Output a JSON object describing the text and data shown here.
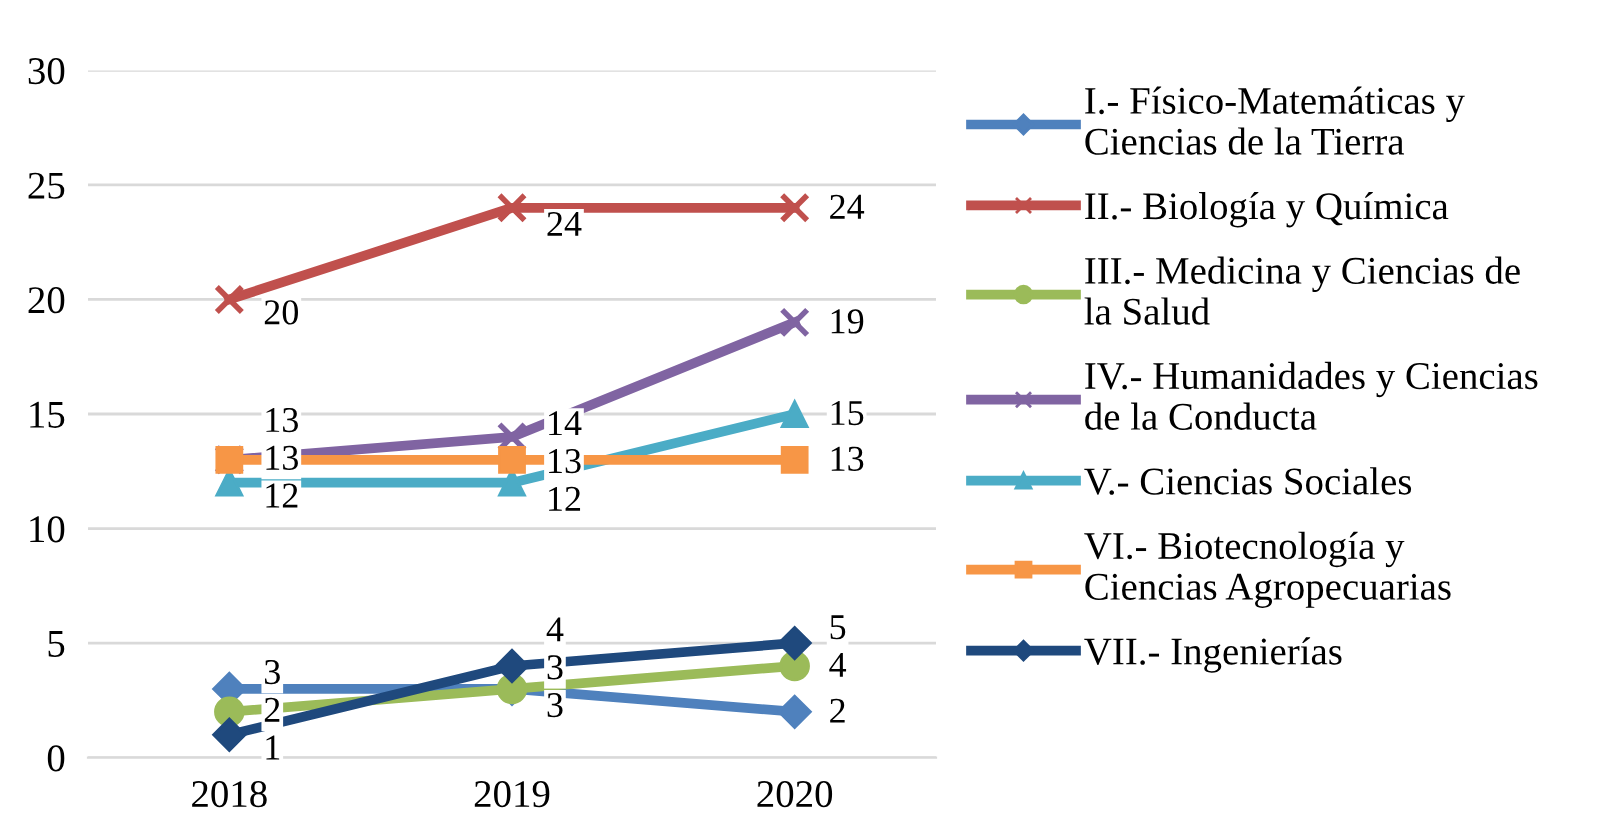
{
  "chart_data": {
    "type": "line",
    "categories": [
      "2018",
      "2019",
      "2020"
    ],
    "ylim": [
      0,
      30
    ],
    "yticks": [
      0,
      5,
      10,
      15,
      20,
      25,
      30
    ],
    "grid": "y",
    "legend": "right",
    "data_labels": true,
    "line_style": "solid",
    "series": [
      {
        "name": "I.- Físico-Matemáticas y Ciencias de la Tierra",
        "color": "#4f81bd",
        "marker": "diamond",
        "values": [
          3,
          3,
          2
        ]
      },
      {
        "name": "II.- Biología y Química",
        "color": "#c0504d",
        "marker": "cross",
        "values": [
          20,
          24,
          24
        ]
      },
      {
        "name": "III.- Medicina y Ciencias de la Salud",
        "color": "#9bbb59",
        "marker": "circle",
        "values": [
          2,
          3,
          4
        ]
      },
      {
        "name": " IV.- Humanidades y Ciencias de la Conducta",
        "color": "#8064a2",
        "marker": "cross",
        "values": [
          13,
          14,
          19
        ]
      },
      {
        "name": "V.- Ciencias Sociales",
        "color": "#4bacc6",
        "marker": "triangle",
        "values": [
          12,
          12,
          15
        ]
      },
      {
        "name": " VI.- Biotecnología y Ciencias Agropecuarias",
        "color": "#f79646",
        "marker": "square",
        "values": [
          13,
          13,
          13
        ]
      },
      {
        "name": "VII.- Ingenierías",
        "color": "#1f497d",
        "marker": "diamond",
        "values": [
          1,
          4,
          5
        ]
      }
    ]
  }
}
